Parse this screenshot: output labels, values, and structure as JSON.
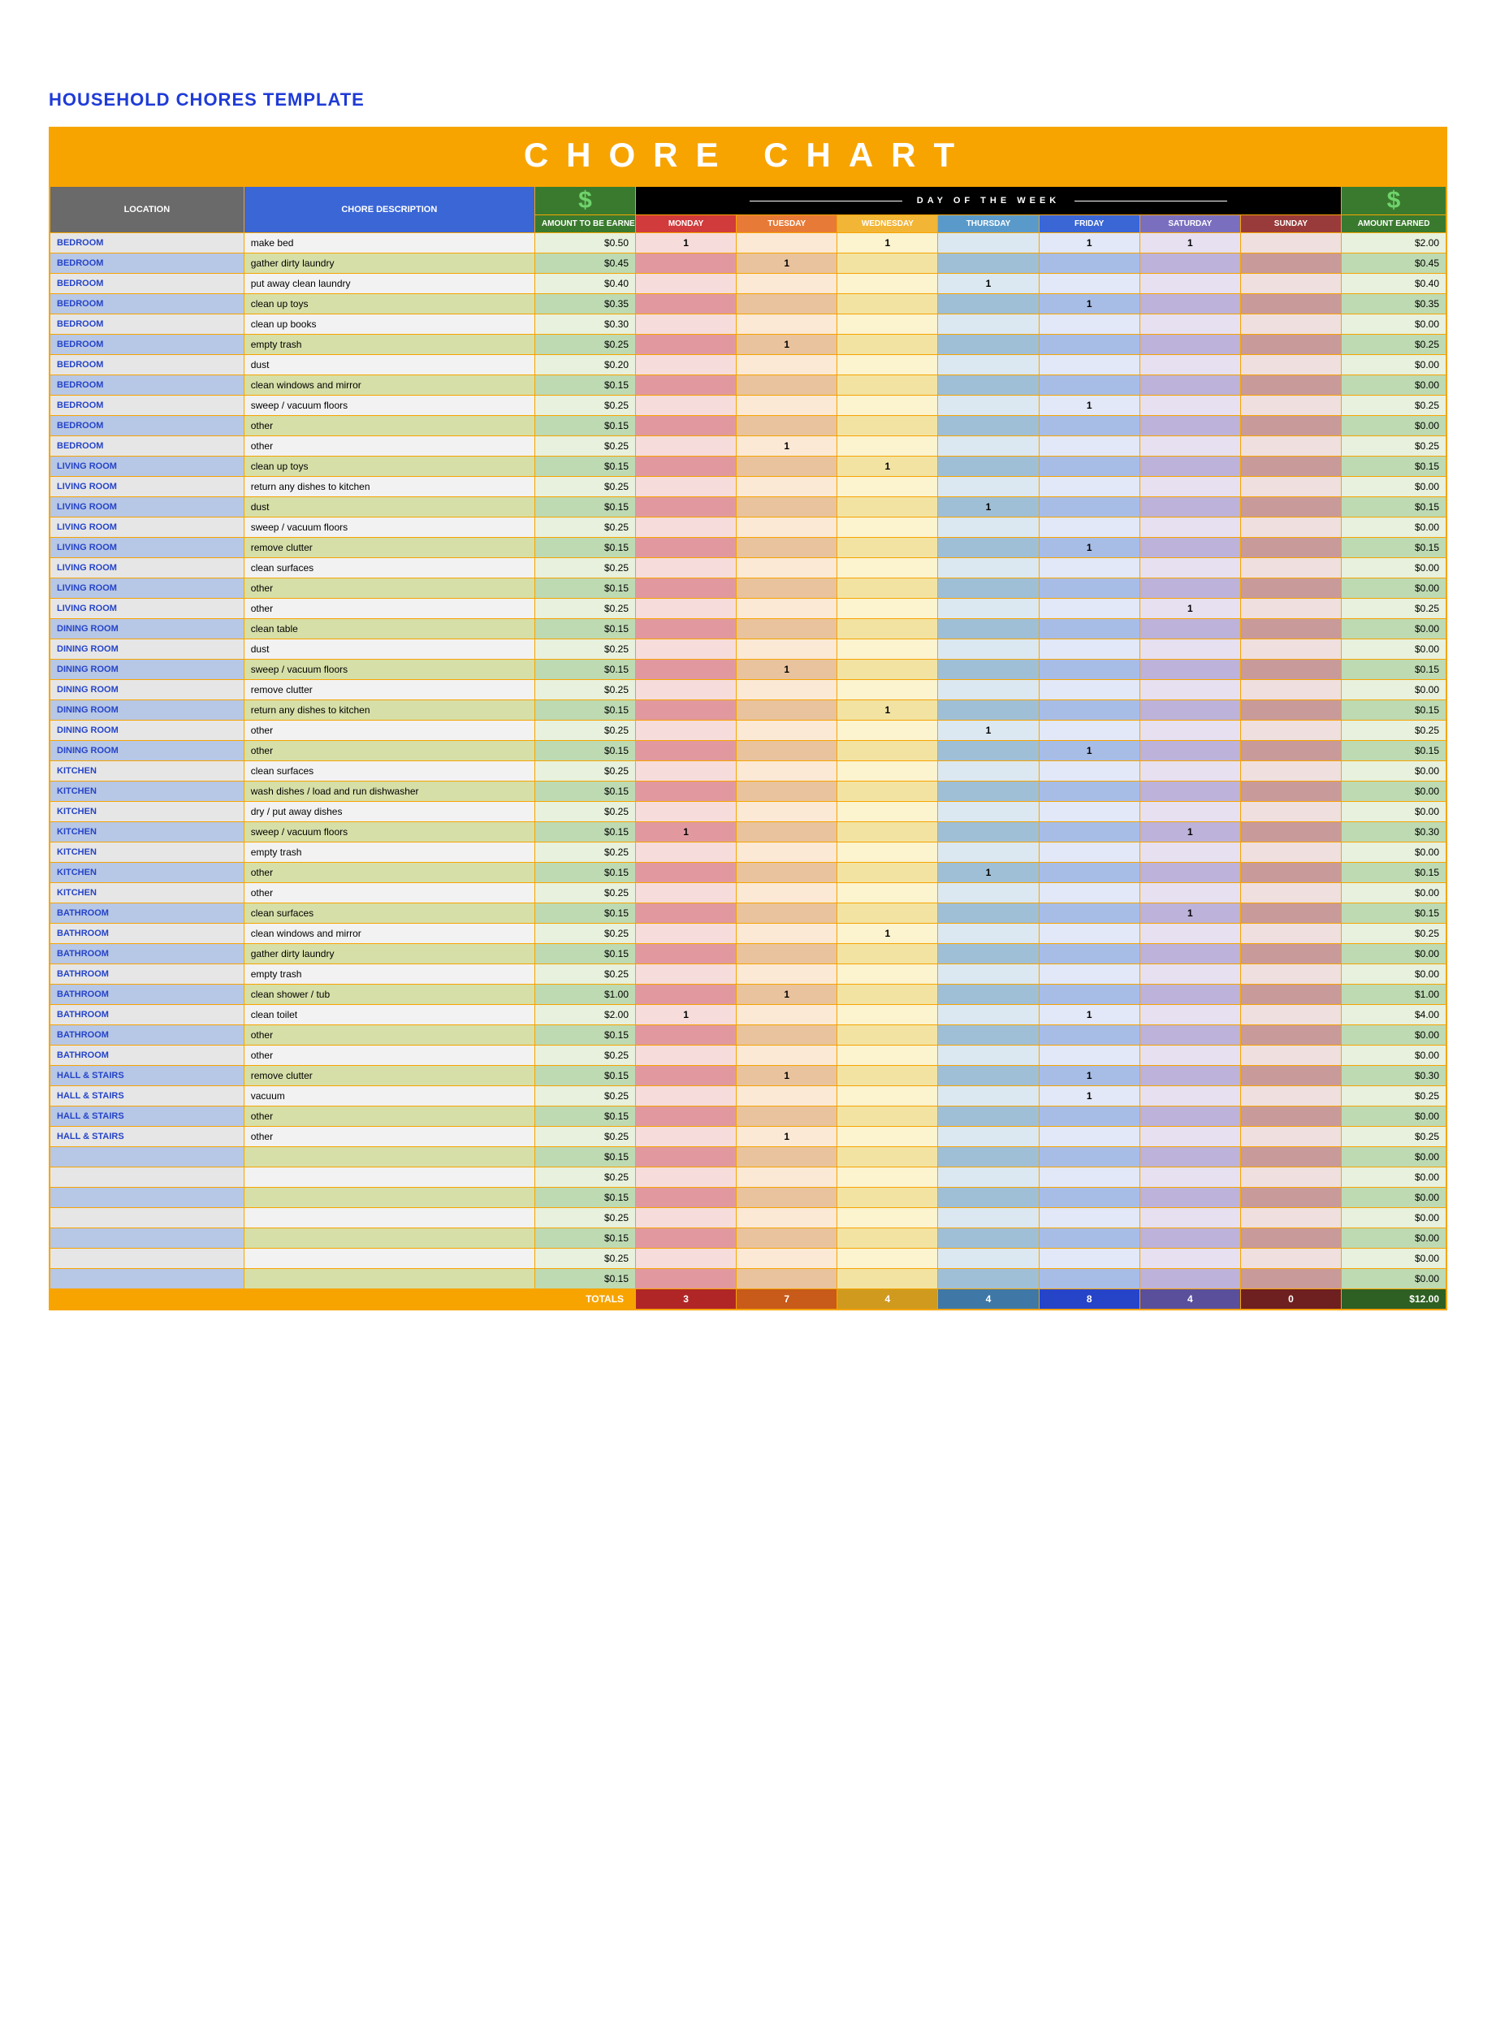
{
  "document": {
    "title": "HOUSEHOLD CHORES TEMPLATE",
    "banner": "CHORE  CHART"
  },
  "headers": {
    "location": "LOCATION",
    "description": "CHORE DESCRIPTION",
    "amount_to_be_earned": "AMOUNT TO BE EARNED",
    "day_of_week_band": "DAY  OF  THE  WEEK",
    "amount_earned": "AMOUNT EARNED",
    "days": [
      "MONDAY",
      "TUESDAY",
      "WEDNESDAY",
      "THURSDAY",
      "FRIDAY",
      "SATURDAY",
      "SUNDAY"
    ],
    "dollar": "$"
  },
  "colors": {
    "loc_hdr": "#6a6a6a",
    "desc_hdr": "#3a66d6",
    "amt_hdr": "#3a7a2e",
    "banner": "#f7a400",
    "day_hdrs": [
      "#d13b3b",
      "#e77a37",
      "#f2b535",
      "#5a9acb",
      "#3a66d6",
      "#7a6fbf",
      "#9a3b3b"
    ],
    "totals_label_bg": "#f7a400",
    "totals_day_bg": [
      "#b02626",
      "#c85a1a",
      "#cf9a1e",
      "#3f78a6",
      "#2544c8",
      "#5a4f9b",
      "#6e1f1f"
    ],
    "totals_earn_bg": "#2e5f23",
    "row_even": {
      "loc": "#b7c7e6",
      "desc": "#d6dfa8",
      "amt": "#bddab3",
      "days": [
        "#e1999f",
        "#e9c39d",
        "#f2e3a2",
        "#9fbfd6",
        "#a8bde6",
        "#bdb2d9",
        "#c99a9a"
      ],
      "earn": "#bddab3"
    },
    "row_odd": {
      "loc": "#e6e6e6",
      "desc": "#f2f2f2",
      "amt": "#e7f1dd",
      "days": [
        "#f7dcdc",
        "#fbe9d6",
        "#fcf3cf",
        "#dbe8f1",
        "#e2e8f7",
        "#e6e0f1",
        "#efdfdf"
      ],
      "earn": "#e7f1dd"
    }
  },
  "rows": [
    {
      "location": "BEDROOM",
      "desc": "make bed",
      "amount": "$0.50",
      "days": [
        "1",
        "",
        "1",
        "",
        "1",
        "1",
        ""
      ],
      "earned": "$2.00"
    },
    {
      "location": "BEDROOM",
      "desc": "gather dirty laundry",
      "amount": "$0.45",
      "days": [
        "",
        "1",
        "",
        "",
        "",
        "",
        ""
      ],
      "earned": "$0.45"
    },
    {
      "location": "BEDROOM",
      "desc": "put away clean laundry",
      "amount": "$0.40",
      "days": [
        "",
        "",
        "",
        "1",
        "",
        "",
        ""
      ],
      "earned": "$0.40"
    },
    {
      "location": "BEDROOM",
      "desc": "clean up toys",
      "amount": "$0.35",
      "days": [
        "",
        "",
        "",
        "",
        "1",
        "",
        ""
      ],
      "earned": "$0.35"
    },
    {
      "location": "BEDROOM",
      "desc": "clean up books",
      "amount": "$0.30",
      "days": [
        "",
        "",
        "",
        "",
        "",
        "",
        ""
      ],
      "earned": "$0.00"
    },
    {
      "location": "BEDROOM",
      "desc": "empty trash",
      "amount": "$0.25",
      "days": [
        "",
        "1",
        "",
        "",
        "",
        "",
        ""
      ],
      "earned": "$0.25"
    },
    {
      "location": "BEDROOM",
      "desc": "dust",
      "amount": "$0.20",
      "days": [
        "",
        "",
        "",
        "",
        "",
        "",
        ""
      ],
      "earned": "$0.00"
    },
    {
      "location": "BEDROOM",
      "desc": "clean windows and mirror",
      "amount": "$0.15",
      "days": [
        "",
        "",
        "",
        "",
        "",
        "",
        ""
      ],
      "earned": "$0.00"
    },
    {
      "location": "BEDROOM",
      "desc": "sweep / vacuum floors",
      "amount": "$0.25",
      "days": [
        "",
        "",
        "",
        "",
        "1",
        "",
        ""
      ],
      "earned": "$0.25"
    },
    {
      "location": "BEDROOM",
      "desc": "other",
      "amount": "$0.15",
      "days": [
        "",
        "",
        "",
        "",
        "",
        "",
        ""
      ],
      "earned": "$0.00"
    },
    {
      "location": "BEDROOM",
      "desc": "other",
      "amount": "$0.25",
      "days": [
        "",
        "1",
        "",
        "",
        "",
        "",
        ""
      ],
      "earned": "$0.25"
    },
    {
      "location": "LIVING ROOM",
      "desc": "clean up toys",
      "amount": "$0.15",
      "days": [
        "",
        "",
        "1",
        "",
        "",
        "",
        ""
      ],
      "earned": "$0.15"
    },
    {
      "location": "LIVING ROOM",
      "desc": "return any dishes to kitchen",
      "amount": "$0.25",
      "days": [
        "",
        "",
        "",
        "",
        "",
        "",
        ""
      ],
      "earned": "$0.00"
    },
    {
      "location": "LIVING ROOM",
      "desc": "dust",
      "amount": "$0.15",
      "days": [
        "",
        "",
        "",
        "1",
        "",
        "",
        ""
      ],
      "earned": "$0.15"
    },
    {
      "location": "LIVING ROOM",
      "desc": "sweep / vacuum floors",
      "amount": "$0.25",
      "days": [
        "",
        "",
        "",
        "",
        "",
        "",
        ""
      ],
      "earned": "$0.00"
    },
    {
      "location": "LIVING ROOM",
      "desc": "remove clutter",
      "amount": "$0.15",
      "days": [
        "",
        "",
        "",
        "",
        "1",
        "",
        ""
      ],
      "earned": "$0.15"
    },
    {
      "location": "LIVING ROOM",
      "desc": "clean surfaces",
      "amount": "$0.25",
      "days": [
        "",
        "",
        "",
        "",
        "",
        "",
        ""
      ],
      "earned": "$0.00"
    },
    {
      "location": "LIVING ROOM",
      "desc": "other",
      "amount": "$0.15",
      "days": [
        "",
        "",
        "",
        "",
        "",
        "",
        ""
      ],
      "earned": "$0.00"
    },
    {
      "location": "LIVING ROOM",
      "desc": "other",
      "amount": "$0.25",
      "days": [
        "",
        "",
        "",
        "",
        "",
        "1",
        ""
      ],
      "earned": "$0.25"
    },
    {
      "location": "DINING ROOM",
      "desc": "clean table",
      "amount": "$0.15",
      "days": [
        "",
        "",
        "",
        "",
        "",
        "",
        ""
      ],
      "earned": "$0.00"
    },
    {
      "location": "DINING ROOM",
      "desc": "dust",
      "amount": "$0.25",
      "days": [
        "",
        "",
        "",
        "",
        "",
        "",
        ""
      ],
      "earned": "$0.00"
    },
    {
      "location": "DINING ROOM",
      "desc": "sweep / vacuum floors",
      "amount": "$0.15",
      "days": [
        "",
        "1",
        "",
        "",
        "",
        "",
        ""
      ],
      "earned": "$0.15"
    },
    {
      "location": "DINING ROOM",
      "desc": "remove clutter",
      "amount": "$0.25",
      "days": [
        "",
        "",
        "",
        "",
        "",
        "",
        ""
      ],
      "earned": "$0.00"
    },
    {
      "location": "DINING ROOM",
      "desc": "return any dishes to kitchen",
      "amount": "$0.15",
      "days": [
        "",
        "",
        "1",
        "",
        "",
        "",
        ""
      ],
      "earned": "$0.15"
    },
    {
      "location": "DINING ROOM",
      "desc": "other",
      "amount": "$0.25",
      "days": [
        "",
        "",
        "",
        "1",
        "",
        "",
        ""
      ],
      "earned": "$0.25"
    },
    {
      "location": "DINING ROOM",
      "desc": "other",
      "amount": "$0.15",
      "days": [
        "",
        "",
        "",
        "",
        "1",
        "",
        ""
      ],
      "earned": "$0.15"
    },
    {
      "location": "KITCHEN",
      "desc": "clean surfaces",
      "amount": "$0.25",
      "days": [
        "",
        "",
        "",
        "",
        "",
        "",
        ""
      ],
      "earned": "$0.00"
    },
    {
      "location": "KITCHEN",
      "desc": "wash dishes / load and run dishwasher",
      "amount": "$0.15",
      "days": [
        "",
        "",
        "",
        "",
        "",
        "",
        ""
      ],
      "earned": "$0.00"
    },
    {
      "location": "KITCHEN",
      "desc": "dry / put away dishes",
      "amount": "$0.25",
      "days": [
        "",
        "",
        "",
        "",
        "",
        "",
        ""
      ],
      "earned": "$0.00"
    },
    {
      "location": "KITCHEN",
      "desc": "sweep / vacuum floors",
      "amount": "$0.15",
      "days": [
        "1",
        "",
        "",
        "",
        "",
        "1",
        ""
      ],
      "earned": "$0.30"
    },
    {
      "location": "KITCHEN",
      "desc": "empty trash",
      "amount": "$0.25",
      "days": [
        "",
        "",
        "",
        "",
        "",
        "",
        ""
      ],
      "earned": "$0.00"
    },
    {
      "location": "KITCHEN",
      "desc": "other",
      "amount": "$0.15",
      "days": [
        "",
        "",
        "",
        "1",
        "",
        "",
        ""
      ],
      "earned": "$0.15"
    },
    {
      "location": "KITCHEN",
      "desc": "other",
      "amount": "$0.25",
      "days": [
        "",
        "",
        "",
        "",
        "",
        "",
        ""
      ],
      "earned": "$0.00"
    },
    {
      "location": "BATHROOM",
      "desc": "clean surfaces",
      "amount": "$0.15",
      "days": [
        "",
        "",
        "",
        "",
        "",
        "1",
        ""
      ],
      "earned": "$0.15"
    },
    {
      "location": "BATHROOM",
      "desc": "clean windows and mirror",
      "amount": "$0.25",
      "days": [
        "",
        "",
        "1",
        "",
        "",
        "",
        ""
      ],
      "earned": "$0.25"
    },
    {
      "location": "BATHROOM",
      "desc": "gather dirty laundry",
      "amount": "$0.15",
      "days": [
        "",
        "",
        "",
        "",
        "",
        "",
        ""
      ],
      "earned": "$0.00"
    },
    {
      "location": "BATHROOM",
      "desc": "empty trash",
      "amount": "$0.25",
      "days": [
        "",
        "",
        "",
        "",
        "",
        "",
        ""
      ],
      "earned": "$0.00"
    },
    {
      "location": "BATHROOM",
      "desc": "clean shower / tub",
      "amount": "$1.00",
      "days": [
        "",
        "1",
        "",
        "",
        "",
        "",
        ""
      ],
      "earned": "$1.00"
    },
    {
      "location": "BATHROOM",
      "desc": "clean toilet",
      "amount": "$2.00",
      "days": [
        "1",
        "",
        "",
        "",
        "1",
        "",
        ""
      ],
      "earned": "$4.00"
    },
    {
      "location": "BATHROOM",
      "desc": "other",
      "amount": "$0.15",
      "days": [
        "",
        "",
        "",
        "",
        "",
        "",
        ""
      ],
      "earned": "$0.00"
    },
    {
      "location": "BATHROOM",
      "desc": "other",
      "amount": "$0.25",
      "days": [
        "",
        "",
        "",
        "",
        "",
        "",
        ""
      ],
      "earned": "$0.00"
    },
    {
      "location": "HALL & STAIRS",
      "desc": "remove clutter",
      "amount": "$0.15",
      "days": [
        "",
        "1",
        "",
        "",
        "1",
        "",
        ""
      ],
      "earned": "$0.30"
    },
    {
      "location": "HALL & STAIRS",
      "desc": "vacuum",
      "amount": "$0.25",
      "days": [
        "",
        "",
        "",
        "",
        "1",
        "",
        ""
      ],
      "earned": "$0.25"
    },
    {
      "location": "HALL & STAIRS",
      "desc": "other",
      "amount": "$0.15",
      "days": [
        "",
        "",
        "",
        "",
        "",
        "",
        ""
      ],
      "earned": "$0.00"
    },
    {
      "location": "HALL & STAIRS",
      "desc": "other",
      "amount": "$0.25",
      "days": [
        "",
        "1",
        "",
        "",
        "",
        "",
        ""
      ],
      "earned": "$0.25"
    },
    {
      "location": "",
      "desc": "",
      "amount": "$0.15",
      "days": [
        "",
        "",
        "",
        "",
        "",
        "",
        ""
      ],
      "earned": "$0.00"
    },
    {
      "location": "",
      "desc": "",
      "amount": "$0.25",
      "days": [
        "",
        "",
        "",
        "",
        "",
        "",
        ""
      ],
      "earned": "$0.00"
    },
    {
      "location": "",
      "desc": "",
      "amount": "$0.15",
      "days": [
        "",
        "",
        "",
        "",
        "",
        "",
        ""
      ],
      "earned": "$0.00"
    },
    {
      "location": "",
      "desc": "",
      "amount": "$0.25",
      "days": [
        "",
        "",
        "",
        "",
        "",
        "",
        ""
      ],
      "earned": "$0.00"
    },
    {
      "location": "",
      "desc": "",
      "amount": "$0.15",
      "days": [
        "",
        "",
        "",
        "",
        "",
        "",
        ""
      ],
      "earned": "$0.00"
    },
    {
      "location": "",
      "desc": "",
      "amount": "$0.25",
      "days": [
        "",
        "",
        "",
        "",
        "",
        "",
        ""
      ],
      "earned": "$0.00"
    },
    {
      "location": "",
      "desc": "",
      "amount": "$0.15",
      "days": [
        "",
        "",
        "",
        "",
        "",
        "",
        ""
      ],
      "earned": "$0.00"
    }
  ],
  "totals": {
    "label": "TOTALS",
    "days": [
      "3",
      "7",
      "4",
      "4",
      "8",
      "4",
      "0"
    ],
    "earned": "$12.00"
  }
}
